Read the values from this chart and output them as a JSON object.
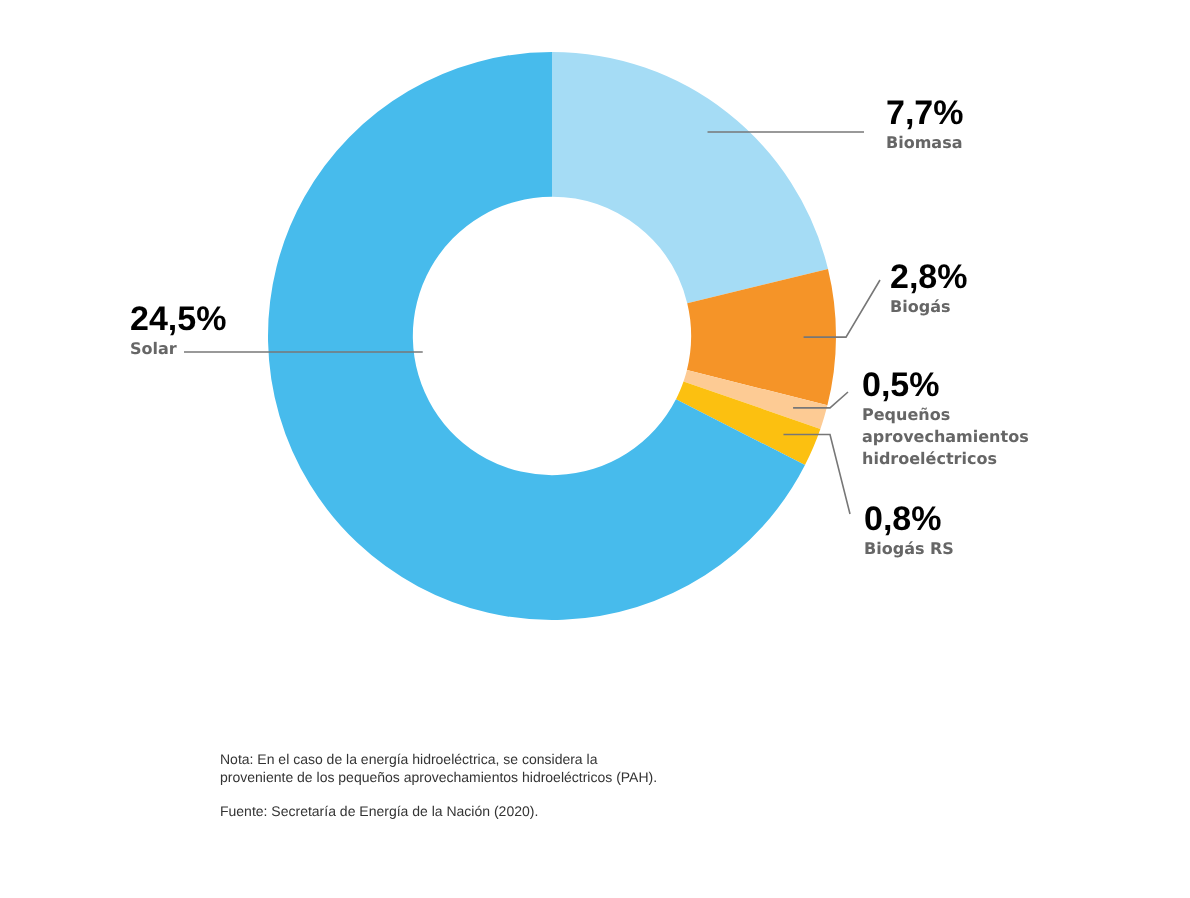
{
  "chart_data": {
    "type": "donut",
    "categories": [
      "Biomasa",
      "Biogás",
      "Pequeños aprovechamientos hidroeléctricos",
      "Biogás RS",
      "Solar"
    ],
    "values": [
      7.7,
      2.8,
      0.5,
      0.8,
      24.5
    ],
    "value_labels": [
      "7,7%",
      "2,8%",
      "0,5%",
      "0,8%",
      "24,5%"
    ],
    "colors": [
      "#a5dcf5",
      "#f59428",
      "#fdcb94",
      "#fcc010",
      "#47bbec"
    ],
    "legend": false,
    "annotations": [
      "Nota: En el caso de la energía hidroeléctrica, se considera la proveniente de los pequeños aprovechamientos hidroeléctricos (PAH).",
      "Fuente: Secretaría de Energía de la Nación (2020)."
    ]
  }
}
